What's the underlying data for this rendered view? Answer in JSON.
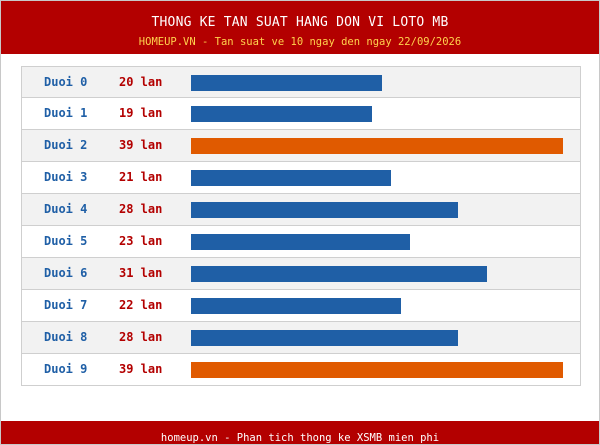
{
  "header": {
    "title": "THONG KE TAN SUAT HANG DON VI LOTO MB",
    "subtitle": "HOMEUP.VN - Tan suat ve 10 ngay den ngay 22/09/2026"
  },
  "footer": {
    "text": "homeup.vn - Phan tich thong ke XSMB mien phi"
  },
  "colors": {
    "header_bg": "#b30000",
    "bar_normal": "#1f5fa6",
    "bar_max": "#e05a00",
    "label": "#1f5fa6",
    "count": "#b30000"
  },
  "chart_data": {
    "type": "bar",
    "orientation": "horizontal",
    "title": "THONG KE TAN SUAT HANG DON VI LOTO MB",
    "subtitle": "HOMEUP.VN - Tan suat ve 10 ngay den ngay 22/09/2026",
    "categories": [
      "Duoi 0",
      "Duoi 1",
      "Duoi 2",
      "Duoi 3",
      "Duoi 4",
      "Duoi 5",
      "Duoi 6",
      "Duoi 7",
      "Duoi 8",
      "Duoi 9"
    ],
    "values": [
      20,
      19,
      39,
      21,
      28,
      23,
      31,
      22,
      28,
      39
    ],
    "value_labels": [
      "20 lan",
      "19 lan",
      "39 lan",
      "21 lan",
      "28 lan",
      "23 lan",
      "31 lan",
      "22 lan",
      "28 lan",
      "39 lan"
    ],
    "xlim": [
      0,
      39
    ],
    "highlight_max": true
  }
}
